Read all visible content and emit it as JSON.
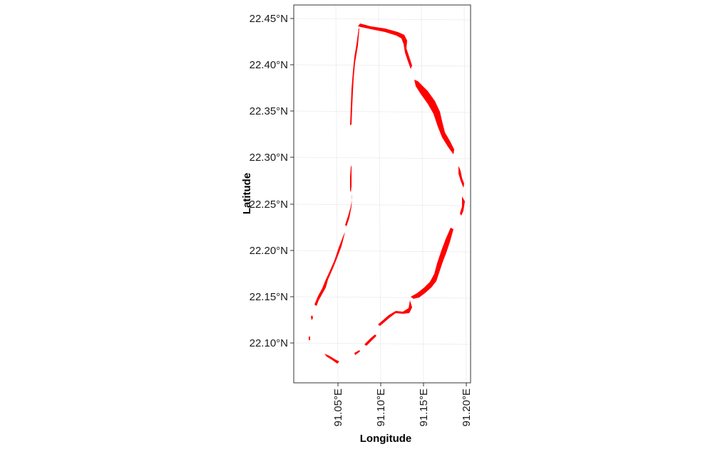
{
  "map": {
    "xlabel": "Longitude",
    "ylabel": "Latitude",
    "x_ticks": [
      "91.05°E",
      "91.10°E",
      "91.15°E",
      "91.20°E"
    ],
    "y_ticks": [
      "22.45°N",
      "22.40°N",
      "22.35°N",
      "22.30°N",
      "22.25°N",
      "22.20°N",
      "22.15°N",
      "22.10°N"
    ],
    "shoreline_color": "#ff0000",
    "frame_color": "#333333",
    "grid": true,
    "legend": "none"
  }
}
